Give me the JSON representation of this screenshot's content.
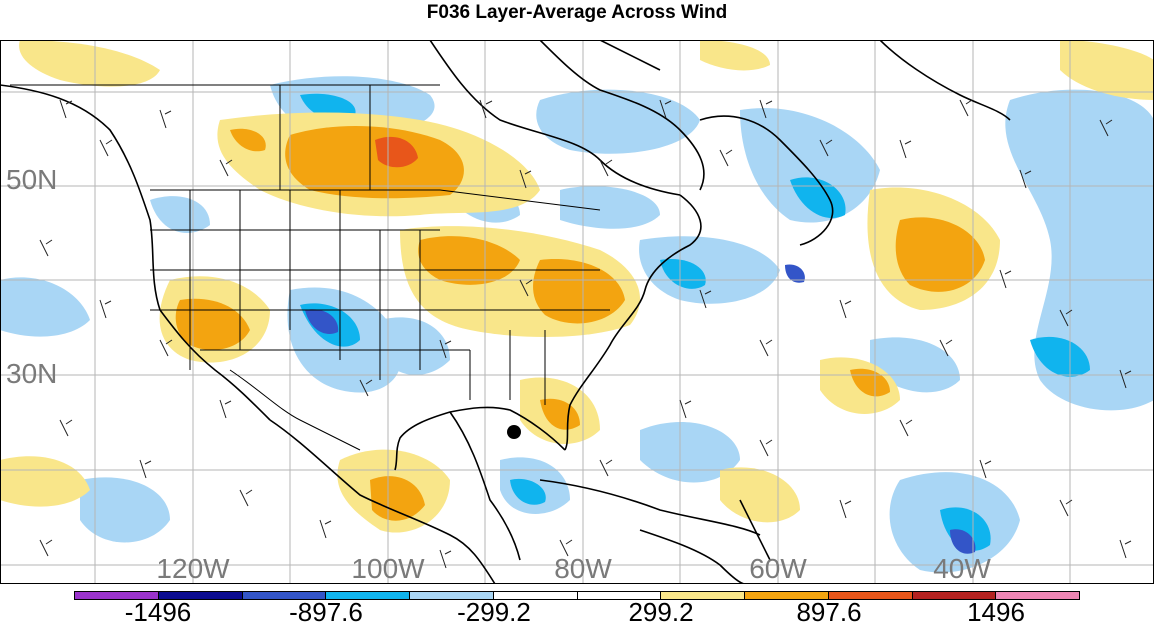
{
  "title": "F036 Layer-Average Across Wind",
  "lat_labels": [
    "50N",
    "30N"
  ],
  "lon_labels": [
    "120W",
    "100W",
    "80W",
    "60W",
    "40W"
  ],
  "colorbar": {
    "colors": [
      "#9a33cc",
      "#0b0b8f",
      "#3355c8",
      "#10b4ee",
      "#a9d6f5",
      "#ffffff",
      "#ffffff",
      "#f9e68a",
      "#f3a410",
      "#e8561a",
      "#b42220",
      "#ee86b4"
    ],
    "labels": [
      "-1496",
      "-897.6",
      "-299.2",
      "299.2",
      "897.6",
      "1496"
    ]
  }
}
